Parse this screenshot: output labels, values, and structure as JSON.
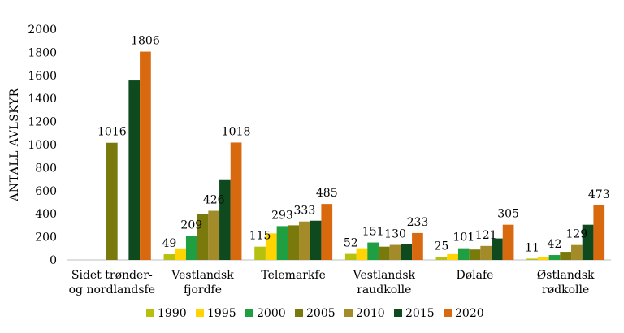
{
  "chart_data": {
    "type": "bar",
    "ylabel": "ANTALL AVLSKYR",
    "ylim": [
      0,
      2000
    ],
    "yticks": [
      0,
      200,
      400,
      600,
      800,
      1000,
      1200,
      1400,
      1600,
      1800,
      2000
    ],
    "grid": false,
    "legend_position": "bottom",
    "categories": [
      [
        "Sidet trønder-",
        "og nordlandsfe"
      ],
      [
        "Vestlandsk",
        "fjordfe"
      ],
      [
        "Telemarkfe"
      ],
      [
        "Vestlandsk",
        "raudkolle"
      ],
      [
        "Dølafe"
      ],
      [
        "Østlandsk",
        "rødkolle"
      ]
    ],
    "series": [
      {
        "name": "1990",
        "color": "#b5c10e",
        "values": [
          null,
          49,
          115,
          52,
          25,
          11
        ],
        "labels": [
          null,
          "49",
          "115",
          "52",
          "25",
          "11"
        ]
      },
      {
        "name": "1995",
        "color": "#ffd400",
        "values": [
          null,
          100,
          230,
          101,
          50,
          22
        ],
        "labels": [
          null,
          null,
          null,
          null,
          null,
          null
        ]
      },
      {
        "name": "2000",
        "color": "#1f9f41",
        "values": [
          null,
          209,
          293,
          151,
          101,
          42
        ],
        "labels": [
          null,
          "209",
          "293",
          "151",
          "101",
          "42"
        ]
      },
      {
        "name": "2005",
        "color": "#7a7a0c",
        "values": [
          1016,
          400,
          300,
          115,
          90,
          70
        ],
        "labels": [
          "1016",
          null,
          null,
          null,
          null,
          null
        ]
      },
      {
        "name": "2010",
        "color": "#a48b2a",
        "values": [
          null,
          426,
          333,
          130,
          121,
          129
        ],
        "labels": [
          null,
          "426",
          "333",
          "130",
          "121",
          "129"
        ]
      },
      {
        "name": "2015",
        "color": "#0f4a1e",
        "values": [
          1556,
          692,
          340,
          135,
          186,
          305
        ],
        "labels": [
          null,
          null,
          null,
          null,
          null,
          null
        ]
      },
      {
        "name": "2020",
        "color": "#d9690f",
        "values": [
          1806,
          1018,
          485,
          233,
          305,
          473
        ],
        "labels": [
          "1806",
          "1018",
          "485",
          "233",
          "305",
          "473"
        ]
      }
    ]
  }
}
